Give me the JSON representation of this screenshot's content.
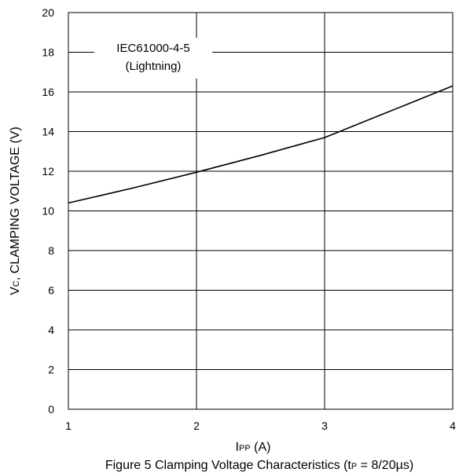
{
  "chart_data": {
    "type": "line",
    "title": "",
    "caption": {
      "prefix": "Figure 5 Clamping Voltage Characteristics (t",
      "sub": "P",
      "suffix": " = 8/20µs)"
    },
    "xlabel": {
      "main": "I",
      "sub": "PP",
      "suffix": " (A)"
    },
    "ylabel": {
      "main": "V",
      "sub": "C",
      "suffix": ", CLAMPING VOLTAGE (V)"
    },
    "xlim": [
      1,
      4
    ],
    "ylim": [
      0,
      20
    ],
    "x_ticks": [
      1,
      2,
      3,
      4
    ],
    "y_ticks": [
      0,
      2,
      4,
      6,
      8,
      10,
      12,
      14,
      16,
      18,
      20
    ],
    "grid": true,
    "annotation": {
      "line1": "IEC61000-4-5",
      "line2": "(Lightning)"
    },
    "series": [
      {
        "x": [
          1,
          1.5,
          2,
          2.5,
          3,
          3.5,
          4
        ],
        "y": [
          10.4,
          11.15,
          11.95,
          12.8,
          13.7,
          15.0,
          16.3
        ]
      }
    ],
    "colors": {
      "line": "#000000",
      "grid": "#000000",
      "background": "#ffffff"
    }
  }
}
